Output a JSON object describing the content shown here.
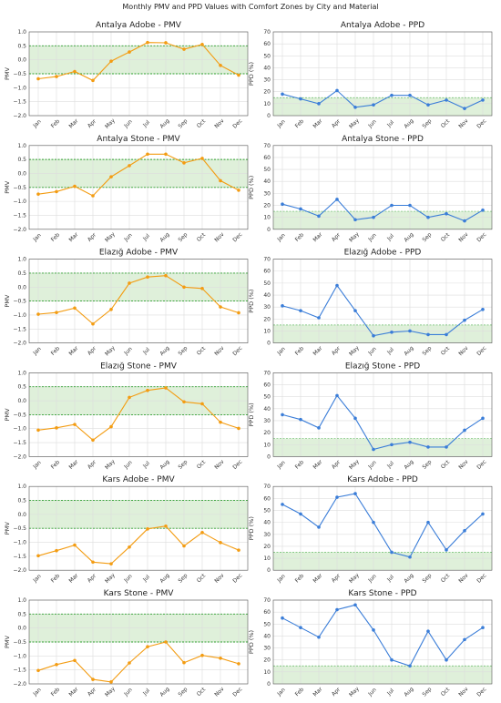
{
  "figure_title": "Monthly PMV and PPD Values with Comfort Zones by City and Material",
  "colors": {
    "pmv_line": "#f39c12",
    "ppd_line": "#3a7dd8",
    "comfort_fill": "#dff0da",
    "comfort_edge": "#2ca02c",
    "grid": "#dddddd"
  },
  "chart_data": [
    {
      "type": "line",
      "title": "Antalya Adobe - PMV",
      "xlabel": "",
      "ylabel": "PMV",
      "ylim": [
        -2.0,
        1.0
      ],
      "yticks": [
        "−2.0",
        "−1.5",
        "−1.0",
        "−0.5",
        "0.0",
        "0.5",
        "1.0"
      ],
      "comfort_zone": [
        -0.5,
        0.5
      ],
      "grid": true,
      "categories": [
        "Jan",
        "Feb",
        "Mar",
        "Apr",
        "May",
        "Jun",
        "Jul",
        "Aug",
        "Sep",
        "Oct",
        "Nov",
        "Dec"
      ],
      "series": [
        {
          "values": [
            -0.68,
            -0.6,
            -0.42,
            -0.74,
            -0.05,
            0.28,
            0.62,
            0.61,
            0.38,
            0.55,
            -0.2,
            -0.55
          ]
        }
      ]
    },
    {
      "type": "line",
      "title": "Antalya Adobe - PPD",
      "xlabel": "",
      "ylabel": "PPD (%)",
      "ylim": [
        0,
        70
      ],
      "yticks": [
        "0",
        "10",
        "20",
        "30",
        "40",
        "50",
        "60",
        "70"
      ],
      "comfort_zone": [
        0,
        15
      ],
      "grid": true,
      "categories": [
        "Jan",
        "Feb",
        "Mar",
        "Apr",
        "May",
        "Jun",
        "Jul",
        "Aug",
        "Sep",
        "Oct",
        "Nov",
        "Dec"
      ],
      "series": [
        {
          "values": [
            18,
            14,
            10,
            21,
            7,
            9,
            17,
            17,
            9,
            13,
            6,
            13
          ]
        }
      ]
    },
    {
      "type": "line",
      "title": "Antalya Stone - PMV",
      "xlabel": "",
      "ylabel": "PMV",
      "ylim": [
        -2.0,
        1.0
      ],
      "yticks": [
        "−2.0",
        "−1.5",
        "−1.0",
        "−0.5",
        "0.0",
        "0.5",
        "1.0"
      ],
      "comfort_zone": [
        -0.5,
        0.5
      ],
      "grid": true,
      "categories": [
        "Jan",
        "Feb",
        "Mar",
        "Apr",
        "May",
        "Jun",
        "Jul",
        "Aug",
        "Sep",
        "Oct",
        "Nov",
        "Dec"
      ],
      "series": [
        {
          "values": [
            -0.74,
            -0.65,
            -0.46,
            -0.8,
            -0.12,
            0.28,
            0.69,
            0.69,
            0.38,
            0.54,
            -0.26,
            -0.6
          ]
        }
      ]
    },
    {
      "type": "line",
      "title": "Antalya Stone - PPD",
      "xlabel": "",
      "ylabel": "PPD (%)",
      "ylim": [
        0,
        70
      ],
      "yticks": [
        "0",
        "10",
        "20",
        "30",
        "40",
        "50",
        "60",
        "70"
      ],
      "comfort_zone": [
        0,
        15
      ],
      "grid": true,
      "categories": [
        "Jan",
        "Feb",
        "Mar",
        "Apr",
        "May",
        "Jun",
        "Jul",
        "Aug",
        "Sep",
        "Oct",
        "Nov",
        "Dec"
      ],
      "series": [
        {
          "values": [
            21,
            17,
            11,
            25,
            8,
            10,
            20,
            20,
            10,
            13,
            7,
            16
          ]
        }
      ]
    },
    {
      "type": "line",
      "title": "Elazığ Adobe - PMV",
      "xlabel": "",
      "ylabel": "PMV",
      "ylim": [
        -2.0,
        1.0
      ],
      "yticks": [
        "−2.0",
        "−1.5",
        "−1.0",
        "−0.5",
        "0.0",
        "0.5",
        "1.0"
      ],
      "comfort_zone": [
        -0.5,
        0.5
      ],
      "grid": true,
      "categories": [
        "Jan",
        "Feb",
        "Mar",
        "Apr",
        "May",
        "Jun",
        "Jul",
        "Aug",
        "Sep",
        "Oct",
        "Nov",
        "Dec"
      ],
      "series": [
        {
          "values": [
            -0.97,
            -0.91,
            -0.75,
            -1.32,
            -0.8,
            0.14,
            0.36,
            0.41,
            0.0,
            -0.05,
            -0.71,
            -0.92
          ]
        }
      ]
    },
    {
      "type": "line",
      "title": "Elazığ Adobe - PPD",
      "xlabel": "",
      "ylabel": "PPD (%)",
      "ylim": [
        0,
        70
      ],
      "yticks": [
        "0",
        "10",
        "20",
        "30",
        "40",
        "50",
        "60",
        "70"
      ],
      "comfort_zone": [
        0,
        15
      ],
      "grid": true,
      "categories": [
        "Jan",
        "Feb",
        "Mar",
        "Apr",
        "May",
        "Jun",
        "Jul",
        "Aug",
        "Sep",
        "Oct",
        "Nov",
        "Dec"
      ],
      "series": [
        {
          "values": [
            31,
            27,
            21,
            48,
            27,
            6,
            9,
            10,
            7,
            7,
            19,
            28
          ]
        }
      ]
    },
    {
      "type": "line",
      "title": "Elazığ Stone - PMV",
      "xlabel": "",
      "ylabel": "PMV",
      "ylim": [
        -2.0,
        1.0
      ],
      "yticks": [
        "−2.0",
        "−1.5",
        "−1.0",
        "−0.5",
        "0.0",
        "0.5",
        "1.0"
      ],
      "comfort_zone": [
        -0.5,
        0.5
      ],
      "grid": true,
      "categories": [
        "Jan",
        "Feb",
        "Mar",
        "Apr",
        "May",
        "Jun",
        "Jul",
        "Aug",
        "Sep",
        "Oct",
        "Nov",
        "Dec"
      ],
      "series": [
        {
          "values": [
            -1.05,
            -0.97,
            -0.85,
            -1.41,
            -0.93,
            0.12,
            0.37,
            0.46,
            -0.04,
            -0.11,
            -0.77,
            -0.99
          ]
        }
      ]
    },
    {
      "type": "line",
      "title": "Elazığ Stone - PPD",
      "xlabel": "",
      "ylabel": "PPD (%)",
      "ylim": [
        0,
        70
      ],
      "yticks": [
        "0",
        "10",
        "20",
        "30",
        "40",
        "50",
        "60",
        "70"
      ],
      "comfort_zone": [
        0,
        15
      ],
      "grid": true,
      "categories": [
        "Jan",
        "Feb",
        "Mar",
        "Apr",
        "May",
        "Jun",
        "Jul",
        "Aug",
        "Sep",
        "Oct",
        "Nov",
        "Dec"
      ],
      "series": [
        {
          "values": [
            35,
            31,
            24,
            51,
            32,
            6,
            10,
            12,
            8,
            8,
            22,
            32
          ]
        }
      ]
    },
    {
      "type": "line",
      "title": "Kars Adobe - PMV",
      "xlabel": "",
      "ylabel": "PMV",
      "ylim": [
        -2.0,
        1.0
      ],
      "yticks": [
        "−2.0",
        "−1.5",
        "−1.0",
        "−0.5",
        "0.0",
        "0.5",
        "1.0"
      ],
      "comfort_zone": [
        -0.5,
        0.5
      ],
      "grid": true,
      "categories": [
        "Jan",
        "Feb",
        "Mar",
        "Apr",
        "May",
        "Jun",
        "Jul",
        "Aug",
        "Sep",
        "Oct",
        "Nov",
        "Dec"
      ],
      "series": [
        {
          "values": [
            -1.48,
            -1.3,
            -1.1,
            -1.71,
            -1.77,
            -1.17,
            -0.52,
            -0.42,
            -1.13,
            -0.65,
            -1.01,
            -1.28
          ]
        }
      ]
    },
    {
      "type": "line",
      "title": "Kars Adobe - PPD",
      "xlabel": "",
      "ylabel": "PPD (%)",
      "ylim": [
        0,
        70
      ],
      "yticks": [
        "0",
        "10",
        "20",
        "30",
        "40",
        "50",
        "60",
        "70"
      ],
      "comfort_zone": [
        0,
        15
      ],
      "grid": true,
      "categories": [
        "Jan",
        "Feb",
        "Mar",
        "Apr",
        "May",
        "Jun",
        "Jul",
        "Aug",
        "Sep",
        "Oct",
        "Nov",
        "Dec"
      ],
      "series": [
        {
          "values": [
            55,
            47,
            36,
            61,
            64,
            40,
            15,
            11,
            40,
            17,
            33,
            47
          ]
        }
      ]
    },
    {
      "type": "line",
      "title": "Kars Stone - PMV",
      "xlabel": "",
      "ylabel": "PMV",
      "ylim": [
        -2.0,
        1.0
      ],
      "yticks": [
        "−2.0",
        "−1.5",
        "−1.0",
        "−0.5",
        "0.0",
        "0.5",
        "1.0"
      ],
      "comfort_zone": [
        -0.5,
        0.5
      ],
      "grid": true,
      "categories": [
        "Jan",
        "Feb",
        "Mar",
        "Apr",
        "May",
        "Jun",
        "Jul",
        "Aug",
        "Sep",
        "Oct",
        "Nov",
        "Dec"
      ],
      "series": [
        {
          "values": [
            -1.52,
            -1.31,
            -1.16,
            -1.84,
            -1.93,
            -1.25,
            -0.67,
            -0.5,
            -1.24,
            -0.98,
            -1.08,
            -1.28
          ]
        }
      ]
    },
    {
      "type": "line",
      "title": "Kars Stone - PPD",
      "xlabel": "",
      "ylabel": "PPD (%)",
      "ylim": [
        0,
        70
      ],
      "yticks": [
        "0",
        "10",
        "20",
        "30",
        "40",
        "50",
        "60",
        "70"
      ],
      "comfort_zone": [
        0,
        15
      ],
      "grid": true,
      "categories": [
        "Jan",
        "Feb",
        "Mar",
        "Apr",
        "May",
        "Jun",
        "Jul",
        "Aug",
        "Sep",
        "Oct",
        "Nov",
        "Dec"
      ],
      "series": [
        {
          "values": [
            55,
            47,
            39,
            62,
            66,
            45,
            20,
            15,
            44,
            20,
            37,
            47
          ]
        }
      ]
    }
  ]
}
